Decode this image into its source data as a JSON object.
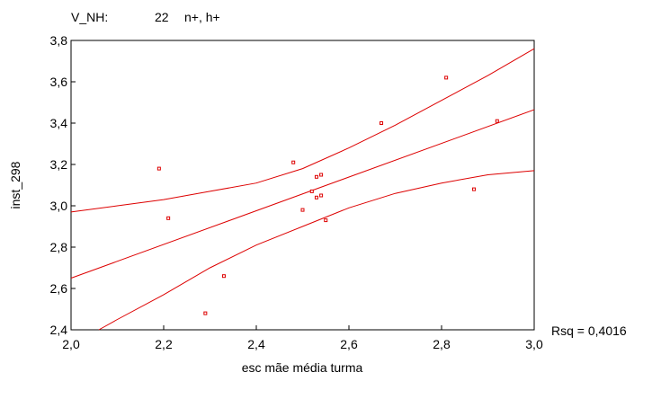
{
  "header": {
    "label": "V_NH:",
    "count": "22",
    "filter": "n+, h+"
  },
  "chart_data": {
    "type": "scatter",
    "xlabel": "esc mãe média turma",
    "ylabel": "inst_298",
    "xlim": [
      2.0,
      3.0
    ],
    "ylim": [
      2.4,
      3.8
    ],
    "x_ticks": [
      "2,0",
      "2,2",
      "2,4",
      "2,6",
      "2,8",
      "3,0"
    ],
    "y_ticks": [
      "2,4",
      "2,6",
      "2,8",
      "3,0",
      "3,2",
      "3,4",
      "3,6",
      "3,8"
    ],
    "grid": false,
    "annotation": "Rsq = 0,4016",
    "points": [
      {
        "x": 2.19,
        "y": 3.18
      },
      {
        "x": 2.21,
        "y": 2.94
      },
      {
        "x": 2.29,
        "y": 2.48
      },
      {
        "x": 2.33,
        "y": 2.66
      },
      {
        "x": 2.48,
        "y": 3.21
      },
      {
        "x": 2.5,
        "y": 2.98
      },
      {
        "x": 2.52,
        "y": 3.07
      },
      {
        "x": 2.53,
        "y": 3.04
      },
      {
        "x": 2.53,
        "y": 3.14
      },
      {
        "x": 2.54,
        "y": 3.15
      },
      {
        "x": 2.54,
        "y": 3.05
      },
      {
        "x": 2.55,
        "y": 2.93
      },
      {
        "x": 2.67,
        "y": 3.4
      },
      {
        "x": 2.81,
        "y": 3.62
      },
      {
        "x": 2.87,
        "y": 3.08
      },
      {
        "x": 2.92,
        "y": 3.41
      }
    ],
    "fit_line": {
      "x": [
        2.0,
        3.0
      ],
      "y": [
        2.65,
        3.465
      ]
    },
    "confidence_upper": {
      "x": [
        2.0,
        2.1,
        2.2,
        2.3,
        2.4,
        2.5,
        2.6,
        2.7,
        2.8,
        2.9,
        3.0
      ],
      "y": [
        2.97,
        3.0,
        3.03,
        3.07,
        3.11,
        3.18,
        3.28,
        3.39,
        3.51,
        3.63,
        3.76
      ]
    },
    "confidence_lower": {
      "x": [
        2.06,
        2.1,
        2.2,
        2.3,
        2.4,
        2.5,
        2.6,
        2.7,
        2.8,
        2.9,
        3.0
      ],
      "y": [
        2.4,
        2.45,
        2.57,
        2.7,
        2.81,
        2.9,
        2.99,
        3.06,
        3.11,
        3.15,
        3.17
      ]
    },
    "colors": {
      "series": "#dd0000",
      "axes": "#000000"
    }
  }
}
